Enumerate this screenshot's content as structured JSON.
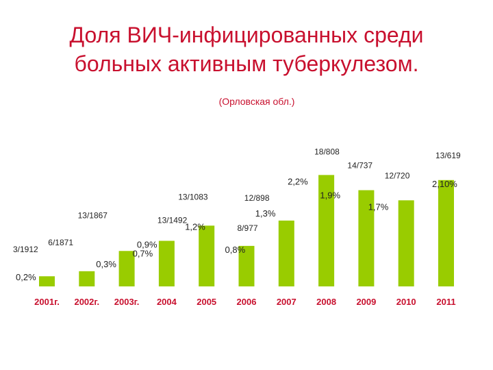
{
  "title_line1": "Доля ВИЧ-инфицированных среди",
  "title_line2": "больных активным туберкулезом.",
  "subtitle": "(Орловская обл.)",
  "colors": {
    "bar": "#99cc00",
    "title": "#c8102e",
    "axis_labels": "#c8102e"
  },
  "chart_data": {
    "type": "bar",
    "categories": [
      "2001г.",
      "2002г.",
      "2003г.",
      "2004",
      "2005",
      "2006",
      "2007",
      "2008",
      "2009",
      "2010",
      "2011"
    ],
    "values": [
      0.2,
      0.3,
      0.7,
      0.9,
      1.2,
      0.8,
      1.3,
      2.2,
      1.9,
      1.7,
      2.1
    ],
    "value_labels": [
      "0,2%",
      "0,3%",
      "0,7%",
      "0,9%",
      "1,2%",
      "0,8%",
      "1,3%",
      "2,2%",
      "1,9%",
      "1,7%",
      "2,10%"
    ],
    "case_labels": [
      "3/1912",
      "6/1871",
      "13/1867",
      "13/1492",
      "13/1083",
      "8/977",
      "12/898",
      "18/808",
      "14/737",
      "12/720",
      "13/619"
    ],
    "title": "Доля ВИЧ-инфицированных среди больных активным туберкулезом.",
    "subtitle": "(Орловская обл.)",
    "ylim": [
      0,
      2.3
    ],
    "grid": false,
    "legend": "none"
  }
}
